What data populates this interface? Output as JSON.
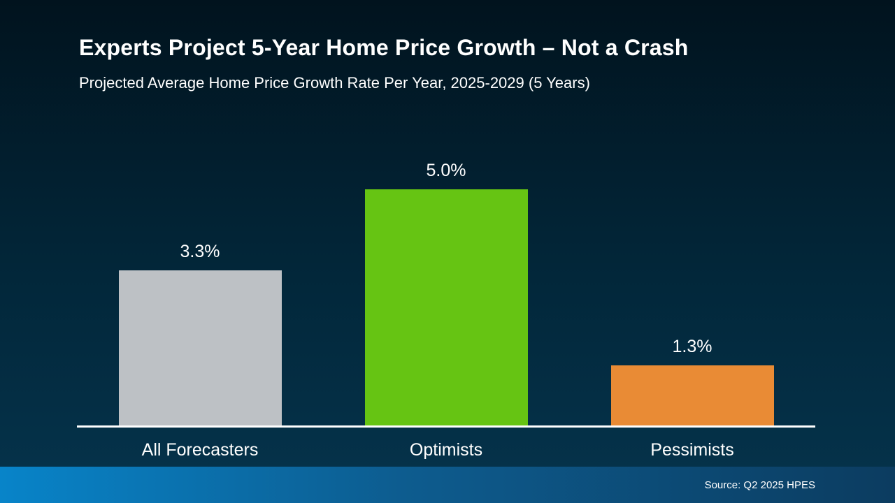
{
  "header": {
    "title": "Experts Project 5-Year Home Price Growth – Not a Crash",
    "subtitle": "Projected Average Home Price Growth Rate Per Year, 2025-2029 (5 Years)"
  },
  "footer": {
    "source": "Source: Q2 2025 HPES"
  },
  "colors": {
    "bg_top": "#01131e",
    "bg_bottom": "#05324a",
    "footer_left": "#0884c9",
    "footer_right": "#0c3c60",
    "text_color": "#ffffff"
  },
  "chart_data": {
    "type": "bar",
    "title": "Experts Project 5-Year Home Price Growth – Not a Crash",
    "subtitle": "Projected Average Home Price Growth Rate Per Year, 2025-2029 (5 Years)",
    "categories": [
      "All Forecasters",
      "Optimists",
      "Pessimists"
    ],
    "values": [
      3.3,
      5.0,
      1.3
    ],
    "value_labels": [
      "3.3%",
      "5.0%",
      "1.3%"
    ],
    "bar_colors": [
      "#bdc1c5",
      "#66c413",
      "#e98b35"
    ],
    "xlabel": "",
    "ylabel": "",
    "ylim": [
      0,
      5
    ],
    "grid": false,
    "legend_position": "none",
    "source": "Source: Q2 2025 HPES"
  }
}
